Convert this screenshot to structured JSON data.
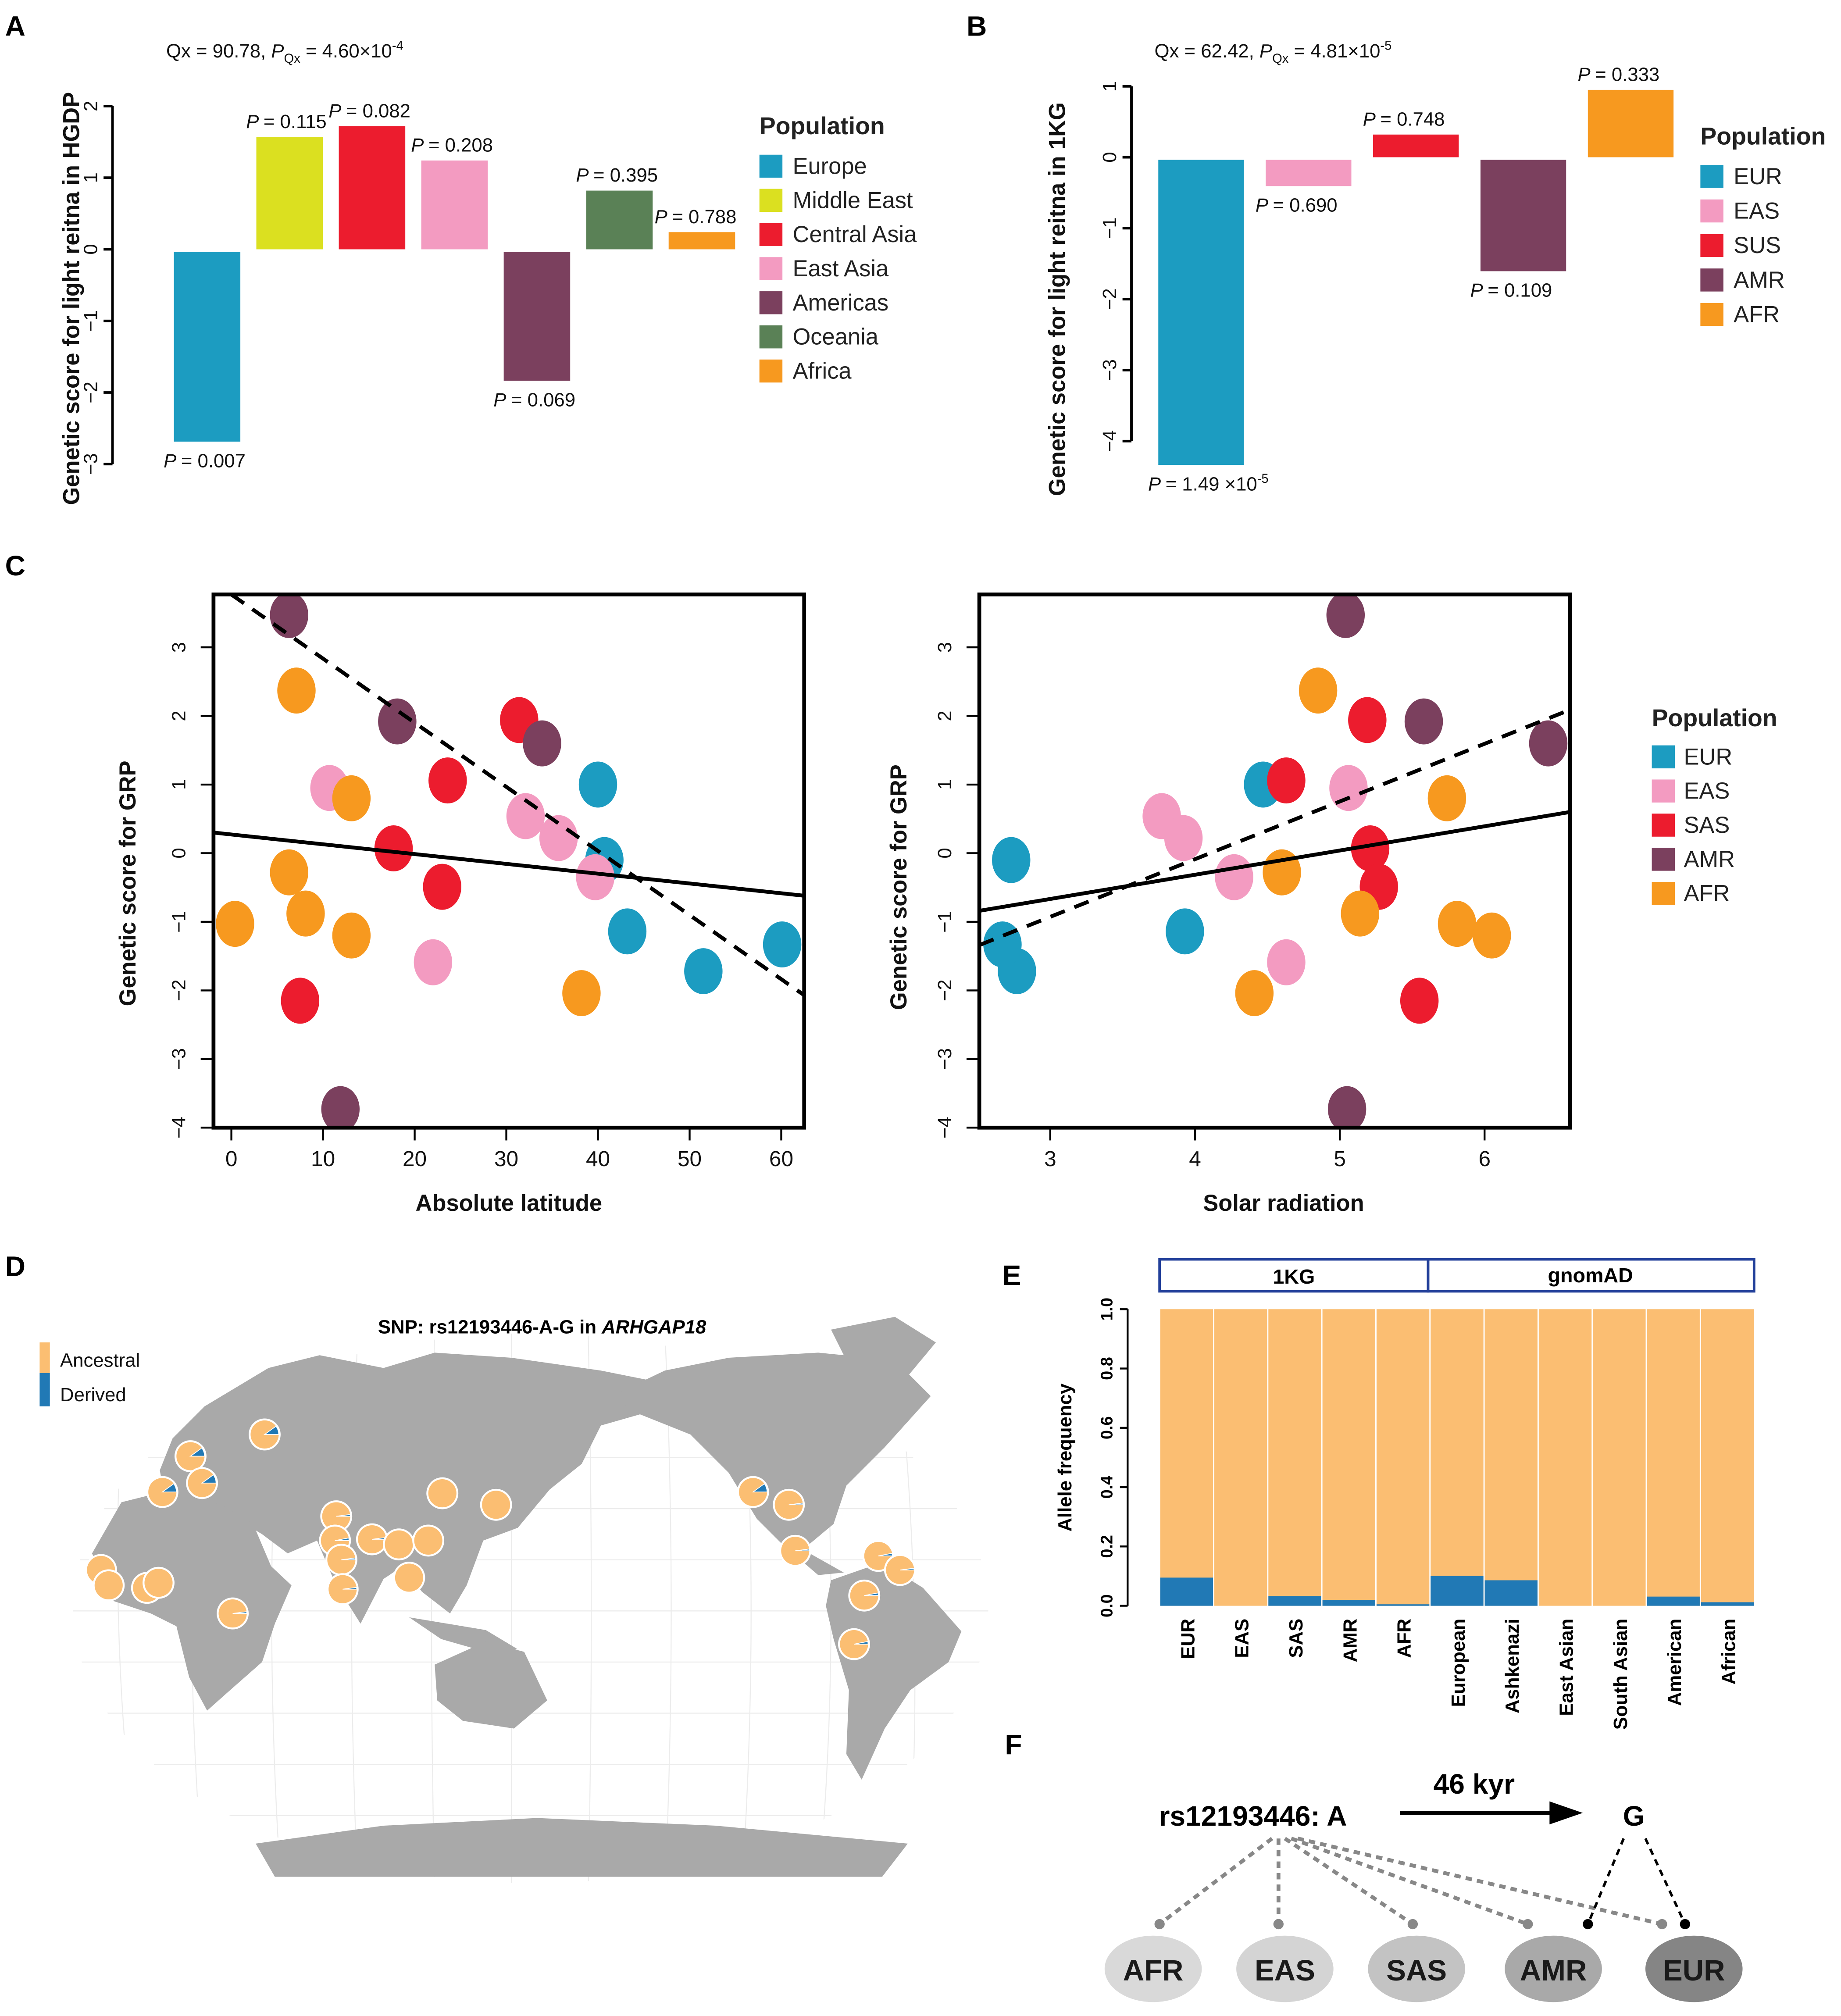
{
  "panels": {
    "a": "A",
    "b": "B",
    "c": "C",
    "d": "D",
    "e": "E",
    "f": "F"
  },
  "p_symbol": "P",
  "chart_data": [
    {
      "id": "A",
      "type": "bar",
      "header": {
        "qx": "Qx = 90.78, ",
        "p": "P",
        "p_sub": "Qx",
        "p_val": " = 4.60×10",
        "p_exp": "-4"
      },
      "ylabel": "Genetic score for light reitna in HGDP",
      "ylim": [
        -3,
        2
      ],
      "yticks": [
        "−3",
        "−2",
        "−1",
        "0",
        "1",
        "2"
      ],
      "categories": [
        "Europe",
        "Middle East",
        "Central Asia",
        "East Asia",
        "Americas",
        "Oceania",
        "Africa"
      ],
      "values": [
        -2.65,
        1.57,
        1.72,
        1.24,
        -1.8,
        0.82,
        0.24
      ],
      "p_labels": [
        "= 0.007",
        "= 0.115",
        "= 0.082",
        "= 0.208",
        "= 0.069",
        "= 0.395",
        "= 0.788"
      ],
      "colors": [
        "#1c9cc1",
        "#dbe020",
        "#ec1c2e",
        "#f39bc1",
        "#7b405e",
        "#5a8156",
        "#f7991f"
      ],
      "legend_title": "Population"
    },
    {
      "id": "B",
      "type": "bar",
      "header": {
        "qx": "Qx = 62.42, ",
        "p": "P",
        "p_sub": "Qx",
        "p_val": " = 4.81×10",
        "p_exp": "-5"
      },
      "ylabel": "Genetic score for light reitna in 1KG",
      "ylim": [
        -4,
        1
      ],
      "yticks": [
        "−4",
        "−3",
        "−2",
        "−1",
        "0",
        "1"
      ],
      "categories": [
        "EUR",
        "EAS",
        "SUS",
        "AMR",
        "AFR"
      ],
      "values": [
        -4.3,
        -0.37,
        0.32,
        -1.57,
        0.95
      ],
      "p_labels": [
        "= 1.49 ×10",
        "= 0.690",
        "= 0.748",
        "= 0.109",
        "= 0.333"
      ],
      "p_label_exp": [
        "-5",
        "",
        "",
        "",
        ""
      ],
      "colors": [
        "#1c9cc1",
        "#f39bc1",
        "#ec1c2e",
        "#7b405e",
        "#f7991f"
      ],
      "legend_title": "Population"
    },
    {
      "id": "C-left",
      "type": "scatter",
      "xlabel": "Absolute latitude",
      "ylabel": "Genetic score for GRP",
      "xlim": [
        -1.95,
        62.5
      ],
      "ylim": [
        -4.0,
        3.77
      ],
      "xticks": [
        0,
        10,
        20,
        30,
        40,
        50,
        60
      ],
      "yticks": [
        -4,
        -3,
        -2,
        -1,
        0,
        1,
        2,
        3
      ],
      "series": [
        {
          "name": "EUR",
          "points": [
            [
              40,
              1.0
            ],
            [
              40.7,
              -0.1
            ],
            [
              43.2,
              -1.14
            ],
            [
              51.5,
              -1.72
            ],
            [
              60.1,
              -1.33
            ]
          ]
        },
        {
          "name": "EAS",
          "points": [
            [
              10.7,
              0.95
            ],
            [
              32.1,
              0.54
            ],
            [
              35.7,
              0.22
            ],
            [
              39.7,
              -0.35
            ],
            [
              22,
              -1.59
            ]
          ]
        },
        {
          "name": "SAS",
          "points": [
            [
              31.4,
              1.94
            ],
            [
              23.6,
              1.06
            ],
            [
              17.7,
              0.07
            ],
            [
              23,
              -0.49
            ],
            [
              7.5,
              -2.15
            ]
          ]
        },
        {
          "name": "AMR",
          "points": [
            [
              6.3,
              3.47
            ],
            [
              18.1,
              1.92
            ],
            [
              33.9,
              1.6
            ],
            [
              11.9,
              -3.73
            ]
          ]
        },
        {
          "name": "AFR",
          "points": [
            [
              7.1,
              2.37
            ],
            [
              13.1,
              0.8
            ],
            [
              6.3,
              -0.28
            ],
            [
              8.1,
              -0.88
            ],
            [
              0.4,
              -1.03
            ],
            [
              13.1,
              -1.2
            ],
            [
              38.2,
              -2.04
            ]
          ]
        }
      ],
      "fit_solid": [
        [
          -1.95,
          0.3
        ],
        [
          62.5,
          -0.62
        ]
      ],
      "fit_dashed": [
        [
          0,
          3.77
        ],
        [
          62.5,
          -2.07
        ]
      ]
    },
    {
      "id": "C-right",
      "type": "scatter",
      "xlabel": "Solar radiation",
      "ylabel": "Genetic score for GRP",
      "xlim": [
        2.51,
        6.59
      ],
      "ylim": [
        -4.0,
        3.77
      ],
      "xticks": [
        3,
        4,
        5,
        6
      ],
      "yticks": [
        -4,
        -3,
        -2,
        -1,
        0,
        1,
        2,
        3
      ],
      "series": [
        {
          "name": "EUR",
          "points": [
            [
              4.47,
              1.0
            ],
            [
              2.73,
              -0.1
            ],
            [
              3.93,
              -1.14
            ],
            [
              2.77,
              -1.72
            ],
            [
              2.67,
              -1.33
            ]
          ]
        },
        {
          "name": "EAS",
          "points": [
            [
              5.06,
              0.95
            ],
            [
              3.77,
              0.54
            ],
            [
              3.92,
              0.22
            ],
            [
              4.27,
              -0.35
            ],
            [
              4.63,
              -1.59
            ]
          ]
        },
        {
          "name": "SAS",
          "points": [
            [
              5.19,
              1.94
            ],
            [
              4.63,
              1.06
            ],
            [
              5.21,
              0.07
            ],
            [
              5.27,
              -0.49
            ],
            [
              5.55,
              -2.15
            ]
          ]
        },
        {
          "name": "AMR",
          "points": [
            [
              5.04,
              3.47
            ],
            [
              5.58,
              1.92
            ],
            [
              6.44,
              1.6
            ],
            [
              5.05,
              -3.73
            ]
          ]
        },
        {
          "name": "AFR",
          "points": [
            [
              4.85,
              2.37
            ],
            [
              5.74,
              0.8
            ],
            [
              4.6,
              -0.28
            ],
            [
              5.14,
              -0.88
            ],
            [
              5.81,
              -1.03
            ],
            [
              6.05,
              -1.2
            ],
            [
              4.41,
              -2.04
            ]
          ]
        }
      ],
      "fit_solid": [
        [
          2.51,
          -0.84
        ],
        [
          6.59,
          0.6
        ]
      ],
      "fit_dashed": [
        [
          2.51,
          -1.34
        ],
        [
          6.59,
          2.09
        ]
      ],
      "legend_title": "Population",
      "legend": [
        "EUR",
        "EAS",
        "SAS",
        "AMR",
        "AFR"
      ],
      "colors": [
        "#1c9cc1",
        "#f39bc1",
        "#ec1c2e",
        "#7b405e",
        "#f7991f"
      ]
    },
    {
      "id": "E",
      "type": "bar",
      "stacked": true,
      "ylabel": "Allele frequency",
      "ylim": [
        0,
        1
      ],
      "yticks": [
        "0.0",
        "0.2",
        "0.4",
        "0.6",
        "0.8",
        "1.0"
      ],
      "groups": [
        "1KG",
        "gnomAD"
      ],
      "categories": [
        "EUR",
        "EAS",
        "SAS",
        "AMR",
        "AFR",
        "European",
        "Ashkenazi",
        "East Asian",
        "South Asian",
        "American",
        "African"
      ],
      "derived": [
        0.095,
        0,
        0.033,
        0.02,
        0.005,
        0.101,
        0.086,
        0,
        0,
        0.031,
        0.012
      ],
      "colors": {
        "ancestral": "#fbbe72",
        "derived": "#2179b5"
      }
    }
  ],
  "map": {
    "title": "SNP: rs12193446-A-G in ",
    "gene": "ARHGAP18",
    "legend": [
      "Ancestral",
      "Derived"
    ],
    "pie_derived": [
      0.1,
      0.1,
      0.1,
      0.1,
      0.02,
      0.03,
      0.02,
      0.02,
      0.02,
      0,
      0,
      0,
      0,
      0,
      0,
      0,
      0,
      0,
      0.02,
      0.1,
      0.02,
      0.02,
      0.03,
      0.02,
      0.03,
      0.03
    ]
  },
  "diagram": {
    "source": "rs12193446: A",
    "target": "G",
    "arrow_label": "46 kyr",
    "populations": [
      "AFR",
      "EAS",
      "SAS",
      "AMR",
      "EUR"
    ],
    "pop_colors": [
      "#d9d9d9",
      "#d4d4d4",
      "#c3c3c3",
      "#a9a9a9",
      "#858585"
    ]
  }
}
